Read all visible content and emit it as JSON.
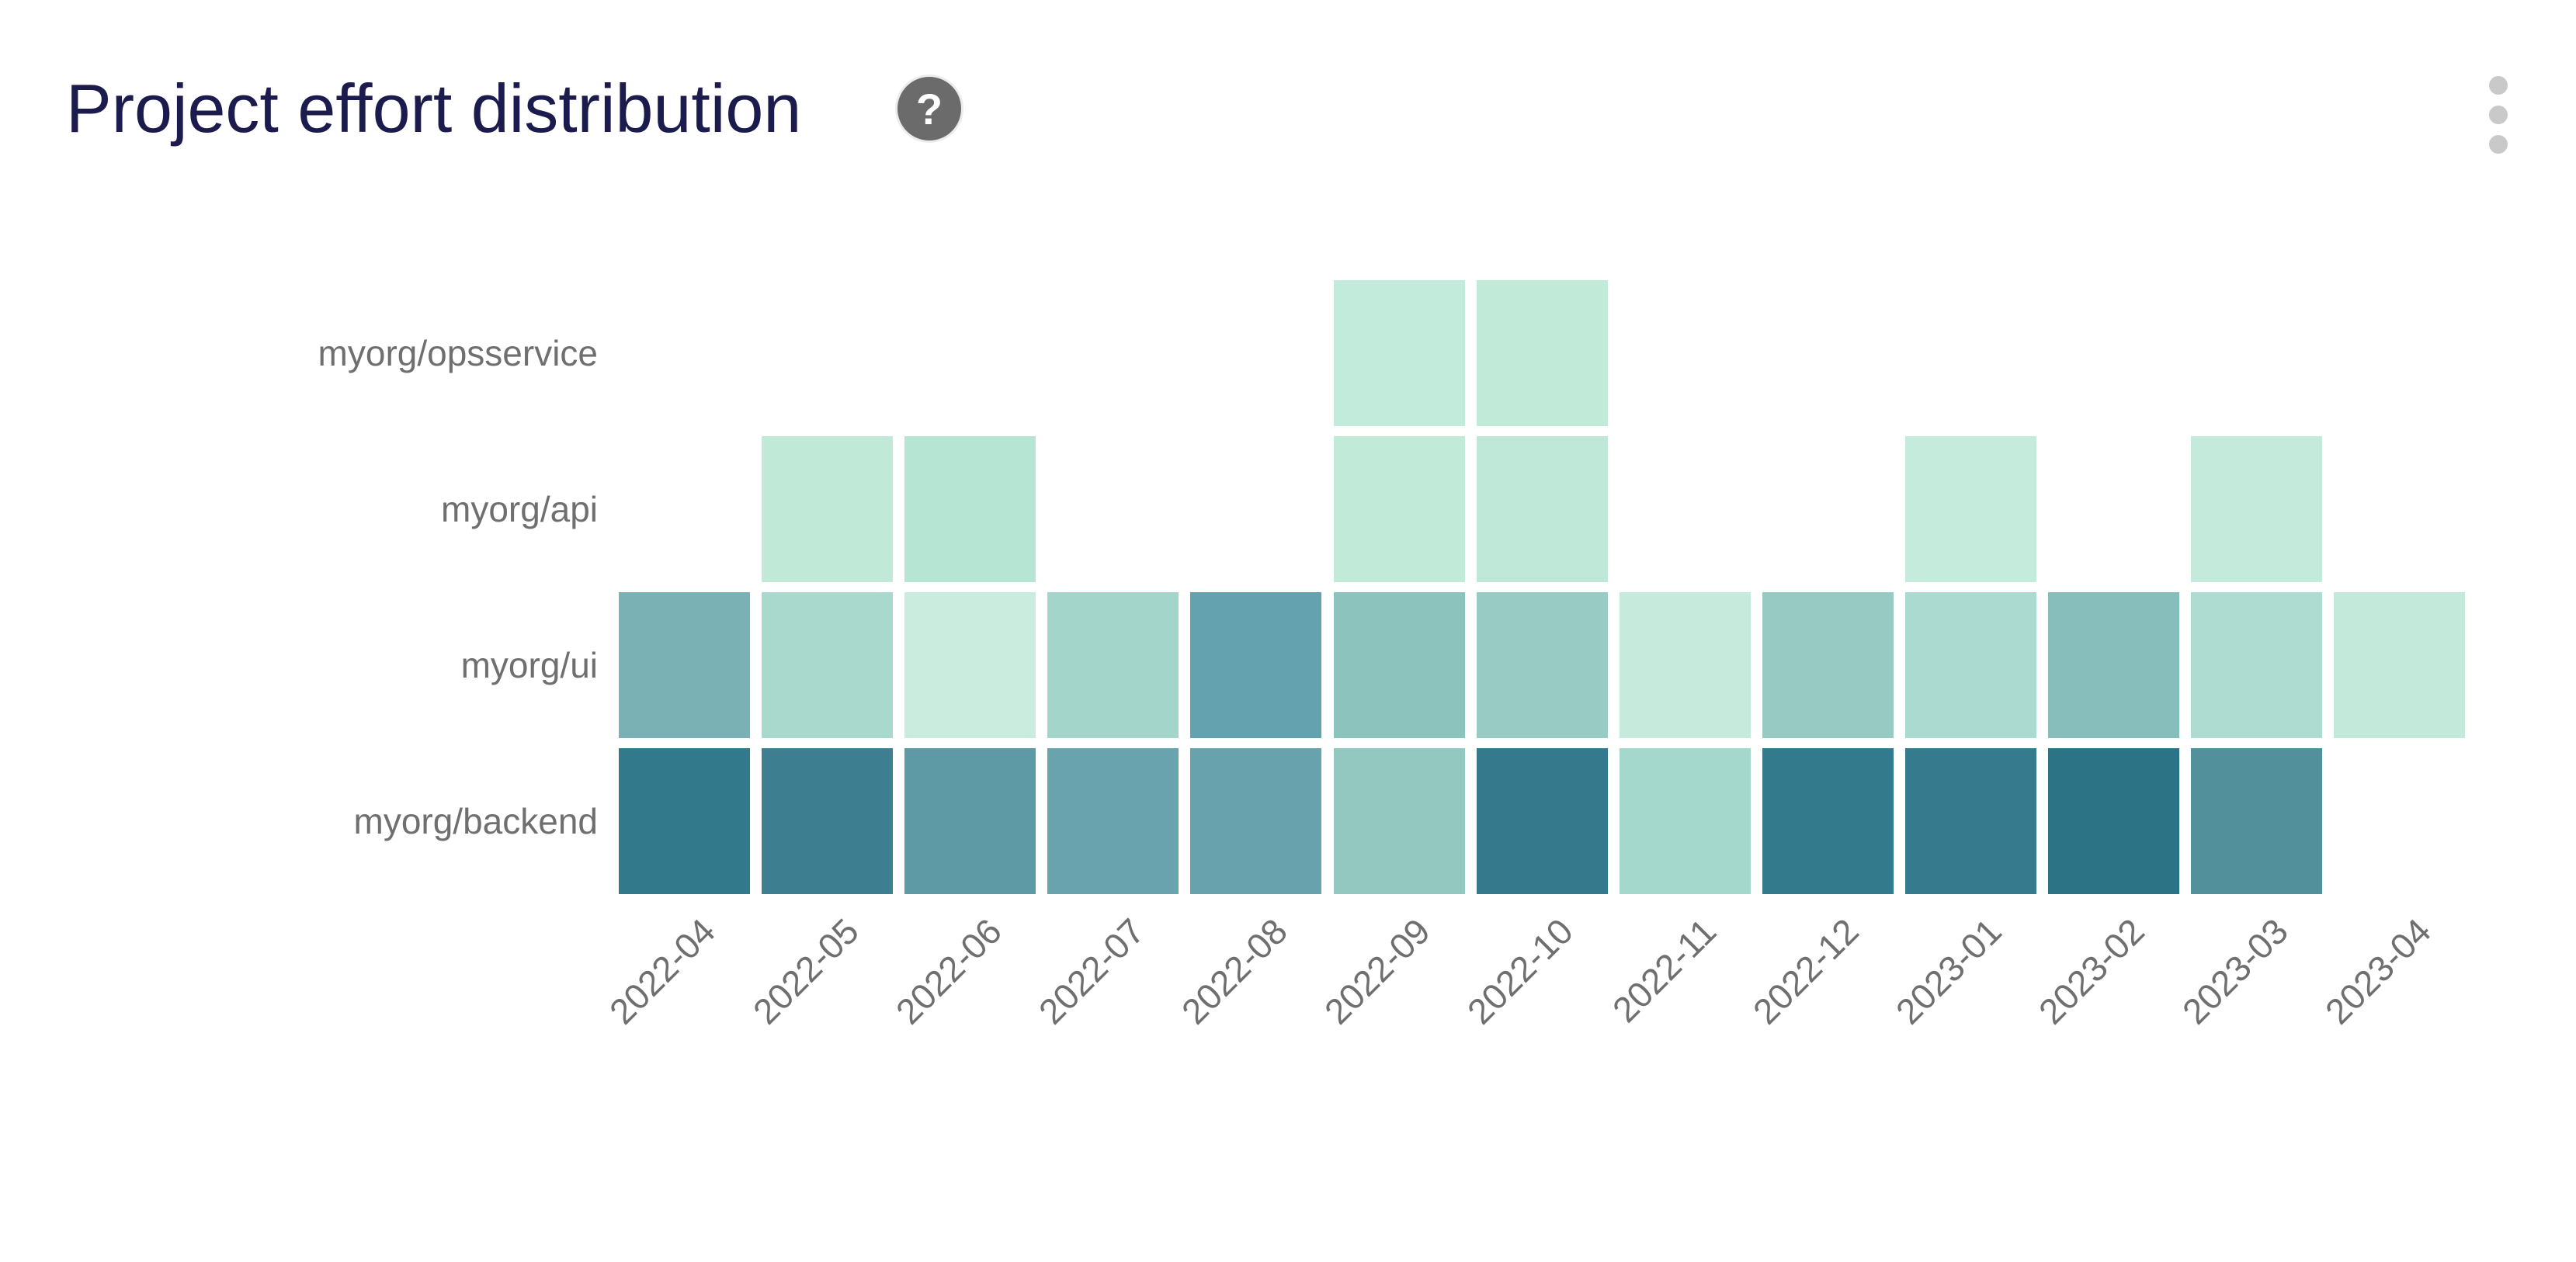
{
  "header": {
    "title": "Project effort distribution",
    "help_glyph": "?"
  },
  "colors": {
    "background": "#ffffff",
    "title_text": "#1b1b4d",
    "axis_label_text": "#6f6f6f",
    "help_icon_bg": "#6b6b6b",
    "help_icon_glyph": "#ffffff",
    "menu_dots": "#c9c9c9",
    "scale_low": "#c9ecdf",
    "scale_high": "#2d7386"
  },
  "chart_data": {
    "type": "heatmap",
    "title": "Project effort distribution",
    "legend": "none",
    "grid": "off",
    "x_categories": [
      "2022-04",
      "2022-05",
      "2022-06",
      "2022-07",
      "2022-08",
      "2022-09",
      "2022-10",
      "2022-11",
      "2022-12",
      "2023-01",
      "2023-02",
      "2023-03",
      "2023-04"
    ],
    "y_categories": [
      "myorg/opsservice",
      "myorg/api",
      "myorg/ui",
      "myorg/backend"
    ],
    "x_label_rotation_deg": 45,
    "series": [
      {
        "name": "myorg/opsservice",
        "colors": [
          null,
          null,
          null,
          null,
          null,
          "#c3ebdb",
          "#c2ead9",
          null,
          null,
          null,
          null,
          null,
          null
        ],
        "intensity_est": [
          null,
          null,
          null,
          null,
          null,
          0.1,
          0.11,
          null,
          null,
          null,
          null,
          null,
          null
        ]
      },
      {
        "name": "myorg/api",
        "colors": [
          null,
          "#c0e9d8",
          "#b7e5d3",
          null,
          null,
          "#c1ead9",
          "#bfe8d8",
          null,
          null,
          "#c4ebdb",
          null,
          "#c3eada",
          null
        ],
        "intensity_est": [
          null,
          0.12,
          0.16,
          null,
          null,
          0.11,
          0.12,
          null,
          null,
          0.09,
          null,
          0.1,
          null
        ]
      },
      {
        "name": "myorg/ui",
        "colors": [
          "#7ab1b4",
          "#a9d8cd",
          "#c9ecdf",
          "#a4d5ca",
          "#63a2ae",
          "#8dc3bd",
          "#97cbc3",
          "#c6ebdc",
          "#96cac2",
          "#abdad0",
          "#87bdba",
          "#aedcd1",
          "#c2e9da"
        ],
        "intensity_est": [
          0.55,
          0.3,
          0.07,
          0.32,
          0.68,
          0.43,
          0.38,
          0.1,
          0.4,
          0.27,
          0.5,
          0.25,
          0.12
        ]
      },
      {
        "name": "myorg/backend",
        "colors": [
          "#33798c",
          "#3d7f90",
          "#5d9aa6",
          "#69a3ad",
          "#68a2ac",
          "#92c8c0",
          "#34798c",
          "#a5d8cc",
          "#347a8d",
          "#357a8d",
          "#2d7386",
          "#52909b",
          null
        ],
        "intensity_est": [
          0.92,
          0.88,
          0.67,
          0.61,
          0.62,
          0.4,
          0.92,
          0.3,
          0.91,
          0.91,
          0.97,
          0.7,
          null
        ]
      }
    ]
  }
}
